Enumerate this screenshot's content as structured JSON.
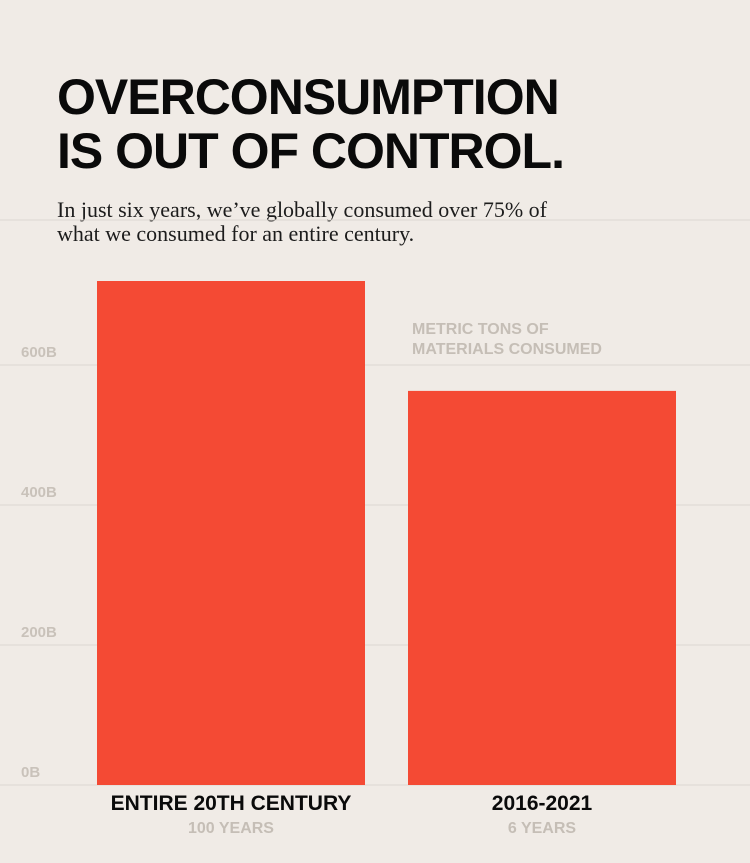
{
  "title_lines": [
    "OVERCONSUMPTION",
    "IS OUT OF CONTROL."
  ],
  "subtitle_lines": [
    "In just six years, we’ve globally consumed over 75% of",
    "what we consumed for an entire century."
  ],
  "colors": {
    "background": "#f0ebe6",
    "bar": "#f44a34",
    "grid": "#ddd7d1",
    "muted_text": "#c5beb6",
    "title": "#0a0a0a"
  },
  "chart_data": {
    "type": "bar",
    "unit_label_lines": [
      "METRIC TONS OF",
      "MATERIALS CONSUMED"
    ],
    "y_ticks": [
      {
        "value": 0,
        "label": "0B"
      },
      {
        "value": 200,
        "label": "200B"
      },
      {
        "value": 400,
        "label": "400B"
      },
      {
        "value": 600,
        "label": "600B"
      }
    ],
    "ylim": [
      0,
      720
    ],
    "grid": true,
    "categories": [
      {
        "label": "ENTIRE 20TH CENTURY",
        "sublabel": "100 YEARS",
        "value": 720
      },
      {
        "label": "2016-2021",
        "sublabel": "6 YEARS",
        "value": 563
      }
    ]
  }
}
